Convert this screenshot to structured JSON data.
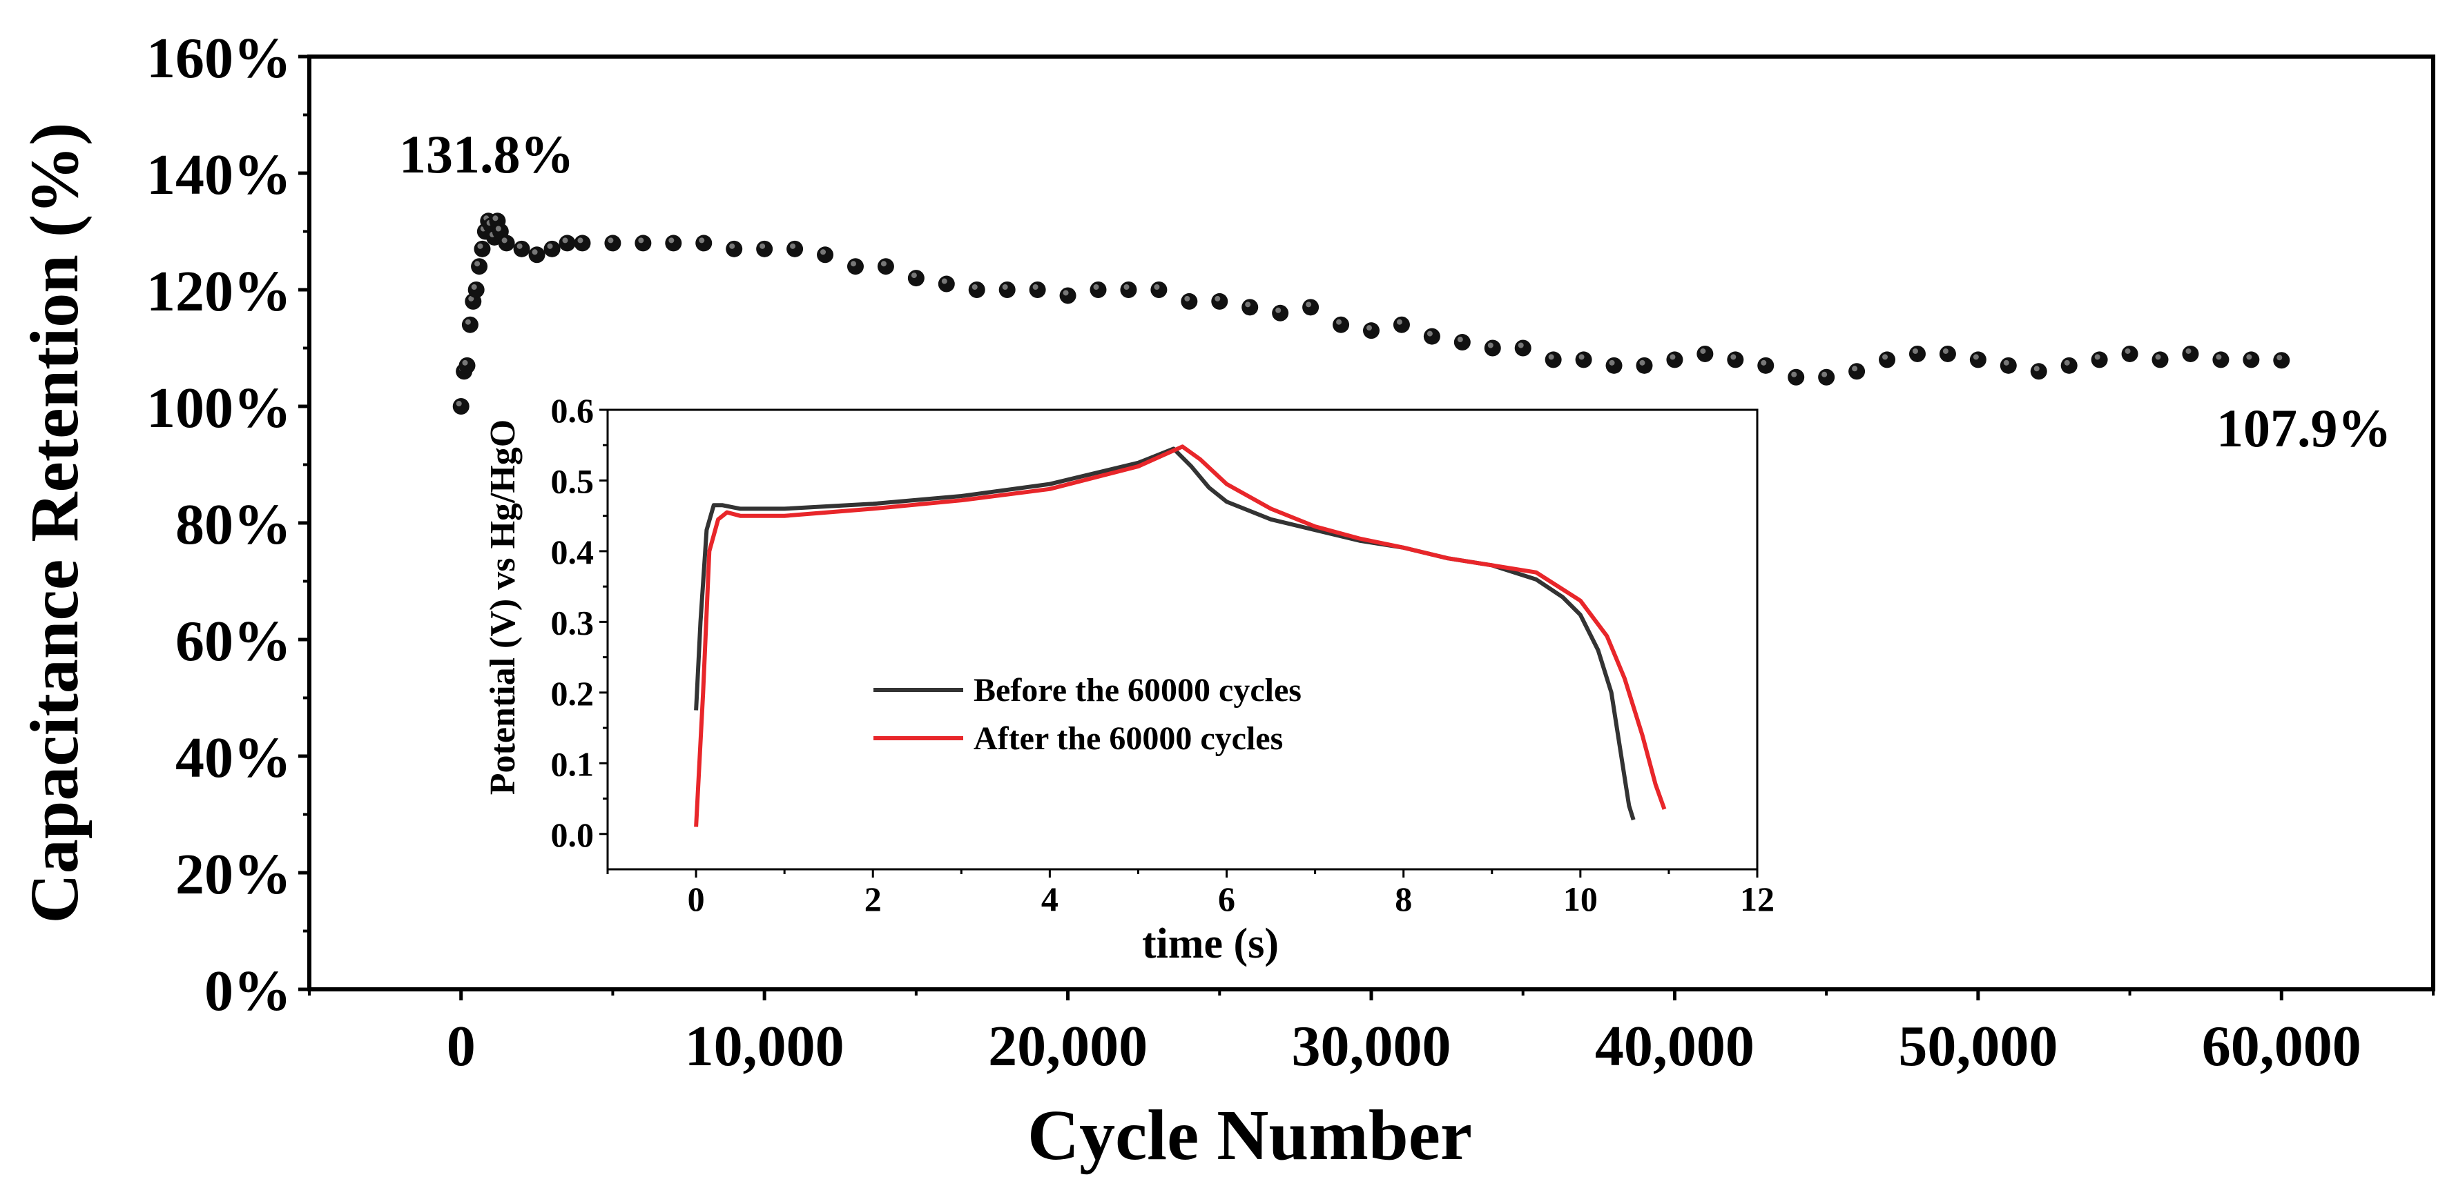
{
  "chart_data": [
    {
      "type": "scatter",
      "xlabel": "Cycle Number",
      "ylabel": "Capacitance Retention (%)",
      "xlim": [
        -5000,
        65000
      ],
      "ylim": [
        0,
        160
      ],
      "x_ticks": [
        0,
        10000,
        20000,
        30000,
        40000,
        50000,
        60000
      ],
      "x_tick_labels": [
        "0",
        "10,000",
        "20,000",
        "30,000",
        "40,000",
        "50,000",
        "60,000"
      ],
      "y_ticks": [
        0,
        20,
        40,
        60,
        80,
        100,
        120,
        140,
        160
      ],
      "y_tick_labels": [
        "0%",
        "20%",
        "40%",
        "60%",
        "80%",
        "100%",
        "120%",
        "140%",
        "160%"
      ],
      "annotations": [
        {
          "text": "131.8%",
          "x": 1800,
          "y": 131.8
        },
        {
          "text": "107.9%",
          "x": 62000,
          "y": 107.9
        }
      ],
      "series": [
        {
          "name": "Capacitance retention",
          "color": "#111111",
          "points": [
            [
              0,
              100
            ],
            [
              100,
              106
            ],
            [
              200,
              107
            ],
            [
              300,
              114
            ],
            [
              400,
              118
            ],
            [
              500,
              120
            ],
            [
              600,
              124
            ],
            [
              700,
              127
            ],
            [
              800,
              130
            ],
            [
              900,
              131.8
            ],
            [
              1000,
              131
            ],
            [
              1100,
              129
            ],
            [
              1200,
              131.8
            ],
            [
              1300,
              130
            ],
            [
              1500,
              128
            ],
            [
              2000,
              127
            ],
            [
              2500,
              126
            ],
            [
              3000,
              127
            ],
            [
              3500,
              128
            ],
            [
              4000,
              128
            ],
            [
              5000,
              128
            ],
            [
              6000,
              128
            ],
            [
              7000,
              128
            ],
            [
              8000,
              128
            ],
            [
              9000,
              127
            ],
            [
              10000,
              127
            ],
            [
              11000,
              127
            ],
            [
              12000,
              126
            ],
            [
              13000,
              124
            ],
            [
              14000,
              124
            ],
            [
              15000,
              122
            ],
            [
              16000,
              121
            ],
            [
              17000,
              120
            ],
            [
              18000,
              120
            ],
            [
              19000,
              120
            ],
            [
              20000,
              119
            ],
            [
              21000,
              120
            ],
            [
              22000,
              120
            ],
            [
              23000,
              120
            ],
            [
              24000,
              118
            ],
            [
              25000,
              118
            ],
            [
              26000,
              117
            ],
            [
              27000,
              116
            ],
            [
              28000,
              117
            ],
            [
              29000,
              114
            ],
            [
              30000,
              113
            ],
            [
              31000,
              114
            ],
            [
              32000,
              112
            ],
            [
              33000,
              111
            ],
            [
              34000,
              110
            ],
            [
              35000,
              110
            ],
            [
              36000,
              108
            ],
            [
              37000,
              108
            ],
            [
              38000,
              107
            ],
            [
              39000,
              107
            ],
            [
              40000,
              108
            ],
            [
              41000,
              109
            ],
            [
              42000,
              108
            ],
            [
              43000,
              107
            ],
            [
              44000,
              105
            ],
            [
              45000,
              105
            ],
            [
              46000,
              106
            ],
            [
              47000,
              108
            ],
            [
              48000,
              109
            ],
            [
              49000,
              109
            ],
            [
              50000,
              108
            ],
            [
              51000,
              107
            ],
            [
              52000,
              106
            ],
            [
              53000,
              107
            ],
            [
              54000,
              108
            ],
            [
              55000,
              109
            ],
            [
              56000,
              108
            ],
            [
              57000,
              109
            ],
            [
              58000,
              108
            ],
            [
              59000,
              108
            ],
            [
              60000,
              107.9
            ]
          ]
        }
      ]
    },
    {
      "type": "line",
      "xlabel": "time (s)",
      "ylabel": "Potential (V) vs Hg/HgO",
      "xlim": [
        -1,
        12
      ],
      "ylim": [
        -0.05,
        0.6
      ],
      "x_ticks": [
        0,
        2,
        4,
        6,
        8,
        10,
        12
      ],
      "x_tick_labels": [
        "0",
        "2",
        "4",
        "6",
        "8",
        "10",
        "12"
      ],
      "y_ticks": [
        0.0,
        0.1,
        0.2,
        0.3,
        0.4,
        0.5,
        0.6
      ],
      "y_tick_labels": [
        "0.0",
        "0.1",
        "0.2",
        "0.3",
        "0.4",
        "0.5",
        "0.6"
      ],
      "legend": "center-left",
      "series": [
        {
          "name": "Before the 60000 cycles",
          "color": "#333333",
          "points": [
            [
              0,
              0.175
            ],
            [
              0.05,
              0.3
            ],
            [
              0.12,
              0.43
            ],
            [
              0.2,
              0.465
            ],
            [
              0.3,
              0.465
            ],
            [
              0.5,
              0.46
            ],
            [
              1,
              0.46
            ],
            [
              2,
              0.467
            ],
            [
              3,
              0.478
            ],
            [
              4,
              0.495
            ],
            [
              5,
              0.525
            ],
            [
              5.4,
              0.545
            ],
            [
              5.6,
              0.52
            ],
            [
              5.8,
              0.49
            ],
            [
              6,
              0.47
            ],
            [
              6.5,
              0.445
            ],
            [
              7,
              0.43
            ],
            [
              7.5,
              0.415
            ],
            [
              8,
              0.405
            ],
            [
              8.5,
              0.39
            ],
            [
              9,
              0.38
            ],
            [
              9.5,
              0.36
            ],
            [
              9.8,
              0.335
            ],
            [
              10,
              0.31
            ],
            [
              10.2,
              0.26
            ],
            [
              10.35,
              0.2
            ],
            [
              10.45,
              0.12
            ],
            [
              10.55,
              0.04
            ],
            [
              10.6,
              0.02
            ]
          ]
        },
        {
          "name": "After the 60000 cycles",
          "color": "#e8262a",
          "points": [
            [
              0,
              0.01
            ],
            [
              0.08,
              0.2
            ],
            [
              0.15,
              0.4
            ],
            [
              0.25,
              0.445
            ],
            [
              0.35,
              0.455
            ],
            [
              0.5,
              0.45
            ],
            [
              1,
              0.45
            ],
            [
              2,
              0.46
            ],
            [
              3,
              0.472
            ],
            [
              4,
              0.488
            ],
            [
              5,
              0.52
            ],
            [
              5.5,
              0.548
            ],
            [
              5.7,
              0.53
            ],
            [
              6,
              0.495
            ],
            [
              6.5,
              0.46
            ],
            [
              7,
              0.435
            ],
            [
              7.5,
              0.418
            ],
            [
              8,
              0.405
            ],
            [
              8.5,
              0.39
            ],
            [
              9,
              0.38
            ],
            [
              9.5,
              0.37
            ],
            [
              10,
              0.33
            ],
            [
              10.3,
              0.28
            ],
            [
              10.5,
              0.22
            ],
            [
              10.7,
              0.14
            ],
            [
              10.85,
              0.07
            ],
            [
              10.95,
              0.035
            ]
          ]
        }
      ]
    }
  ]
}
